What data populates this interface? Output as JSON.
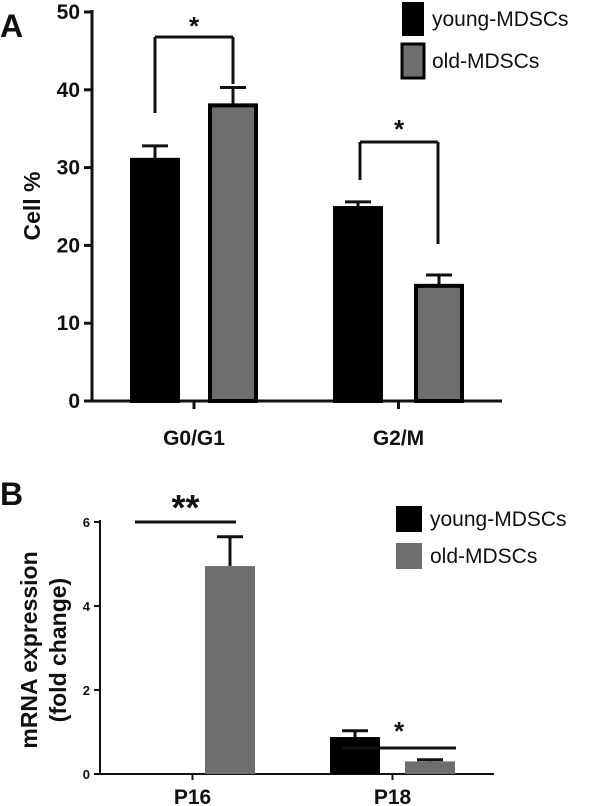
{
  "chart_data": [
    {
      "panel": "A",
      "type": "bar",
      "ylabel": "Cell %",
      "xlabel": "",
      "ylim": [
        0,
        50
      ],
      "yticks": [
        0,
        10,
        20,
        30,
        40,
        50
      ],
      "categories": [
        "G0/G1",
        "G2/M"
      ],
      "series": [
        {
          "name": "young-MDSCs",
          "values": [
            31,
            24.8
          ],
          "errors": [
            1.8,
            0.8
          ],
          "color": "#000000"
        },
        {
          "name": "old-MDSCs",
          "values": [
            38,
            14.8
          ],
          "errors": [
            2.3,
            1.4
          ],
          "color": "#6e6e6e"
        }
      ],
      "significance": [
        "*",
        "*"
      ],
      "legend_position": "top-right"
    },
    {
      "panel": "B",
      "type": "bar",
      "ylabel_lines": [
        "mRNA expression",
        "(fold change)"
      ],
      "xlabel": "",
      "ylim": [
        0,
        6
      ],
      "yticks": [
        0,
        2,
        4,
        6
      ],
      "categories": [
        "P16",
        "P18"
      ],
      "series": [
        {
          "name": "young-MDSCs",
          "values": [
            0,
            0.88
          ],
          "errors": [
            0,
            0.15
          ],
          "color": "#000000"
        },
        {
          "name": "old-MDSCs",
          "values": [
            4.95,
            0.3
          ],
          "errors": [
            0.7,
            0.04
          ],
          "color": "#6e6e6e"
        }
      ],
      "significance": [
        "**",
        "*"
      ],
      "legend_position": "top-right"
    }
  ]
}
